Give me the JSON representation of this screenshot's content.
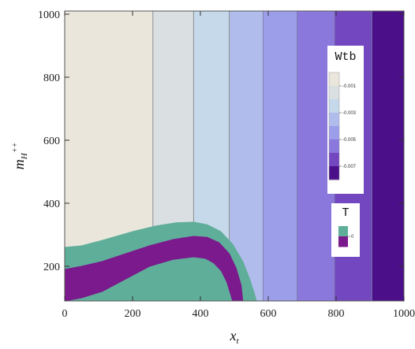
{
  "chart_data": {
    "type": "heatmap",
    "title": "",
    "xlabel_main": "x",
    "xlabel_sub": "t",
    "ylabel_main": "m",
    "ylabel_sub": "H",
    "ylabel_sup": "++",
    "xlim": [
      0,
      1000
    ],
    "ylim": [
      90,
      1010
    ],
    "x_ticks": [
      "0",
      "200",
      "400",
      "600",
      "800",
      "1000"
    ],
    "y_ticks": [
      "200",
      "400",
      "600",
      "800",
      "1000"
    ],
    "grid": false,
    "contour_boundaries_x": [
      260,
      380,
      485,
      585,
      685,
      795,
      905
    ],
    "bands": [
      {
        "x_from": 0,
        "x_to": 260,
        "color": "#ebe6dc"
      },
      {
        "x_from": 260,
        "x_to": 380,
        "color": "#dadfe2"
      },
      {
        "x_from": 380,
        "x_to": 485,
        "color": "#c5d9ea"
      },
      {
        "x_from": 485,
        "x_to": 585,
        "color": "#b0bceb"
      },
      {
        "x_from": 585,
        "x_to": 685,
        "color": "#9d9eea"
      },
      {
        "x_from": 685,
        "x_to": 795,
        "color": "#8b78dc"
      },
      {
        "x_from": 795,
        "x_to": 905,
        "color": "#7347bf"
      },
      {
        "x_from": 905,
        "x_to": 1000,
        "color": "#4b0f8a"
      }
    ],
    "legend_wtb": {
      "title": "Wtb",
      "placement": "right",
      "ticks": [
        "-0.001",
        "-0.003",
        "-0.005",
        "-0.007"
      ],
      "colors": [
        "#ebe6dc",
        "#dadfe2",
        "#c5d9ea",
        "#b0bceb",
        "#9d9eea",
        "#8b78dc",
        "#7347bf",
        "#4b0f8a"
      ]
    },
    "legend_t": {
      "title": "T",
      "placement": "right",
      "ticks": [
        "0"
      ],
      "colors": [
        "#5fae9a",
        "#7b1a8c"
      ]
    },
    "regions": [
      {
        "name": "T positive region",
        "color": "#5fae9a",
        "outer_x": [
          0,
          50,
          120,
          200,
          270,
          330,
          380,
          420,
          460,
          495,
          525,
          545,
          560,
          565
        ],
        "outer_y": [
          260,
          265,
          285,
          310,
          328,
          338,
          340,
          332,
          310,
          270,
          215,
          160,
          110,
          90
        ]
      },
      {
        "name": "T negative region",
        "color": "#7b1a8c",
        "outer_x": [
          0,
          50,
          110,
          180,
          250,
          320,
          380,
          420,
          455,
          485,
          505,
          520,
          525
        ],
        "outer_y": [
          190,
          200,
          215,
          240,
          265,
          285,
          295,
          292,
          275,
          240,
          195,
          140,
          90
        ],
        "inner_x": [
          0,
          50,
          110,
          180,
          250,
          320,
          380,
          415,
          440,
          462,
          478,
          488,
          495
        ],
        "inner_y": [
          90,
          100,
          120,
          160,
          200,
          222,
          230,
          225,
          210,
          185,
          150,
          115,
          90
        ]
      }
    ]
  }
}
